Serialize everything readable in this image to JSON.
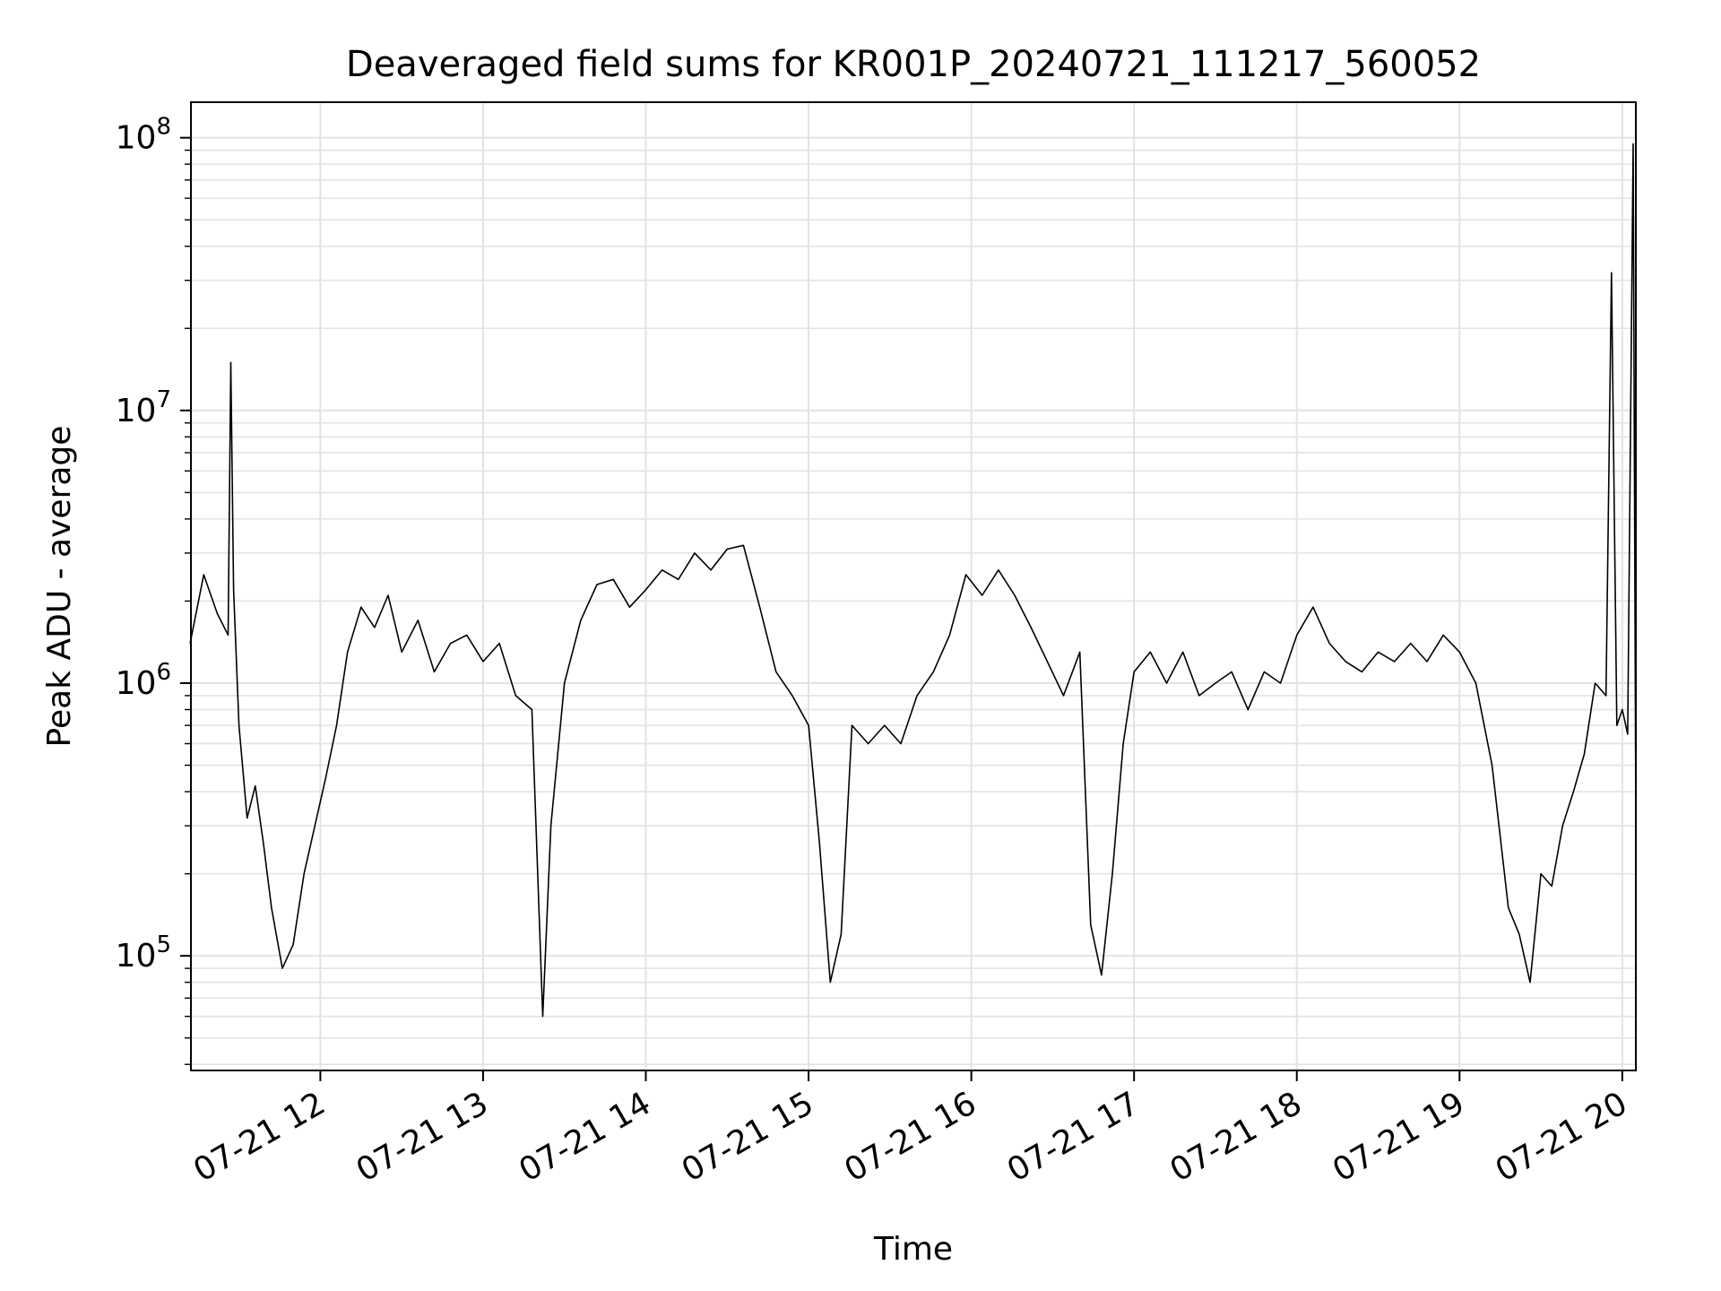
{
  "chart_data": {
    "type": "line",
    "title": "Deaveraged field sums for KR001P_20240721_111217_560052",
    "xlabel": "Time",
    "ylabel": "Peak ADU - average",
    "yscale": "log",
    "ylim": [
      38000,
      135000000
    ],
    "xlim": [
      "2024-07-21 11:12:17",
      "2024-07-21 20:05:00"
    ],
    "grid": true,
    "x_tick_labels": [
      "07-21 12",
      "07-21 13",
      "07-21 14",
      "07-21 15",
      "07-21 16",
      "07-21 17",
      "07-21 18",
      "07-21 19",
      "07-21 20"
    ],
    "y_tick_labels": [
      {
        "base": "10",
        "exp": "5"
      },
      {
        "base": "10",
        "exp": "6"
      },
      {
        "base": "10",
        "exp": "7"
      },
      {
        "base": "10",
        "exp": "8"
      }
    ],
    "series": [
      {
        "color": "#000000",
        "x": [
          "2024-07-21 11:12",
          "2024-07-21 11:17",
          "2024-07-21 11:22",
          "2024-07-21 11:26",
          "2024-07-21 11:27",
          "2024-07-21 11:28",
          "2024-07-21 11:30",
          "2024-07-21 11:33",
          "2024-07-21 11:36",
          "2024-07-21 11:39",
          "2024-07-21 11:42",
          "2024-07-21 11:46",
          "2024-07-21 11:50",
          "2024-07-21 11:54",
          "2024-07-21 11:58",
          "2024-07-21 12:02",
          "2024-07-21 12:06",
          "2024-07-21 12:10",
          "2024-07-21 12:15",
          "2024-07-21 12:20",
          "2024-07-21 12:25",
          "2024-07-21 12:30",
          "2024-07-21 12:36",
          "2024-07-21 12:42",
          "2024-07-21 12:48",
          "2024-07-21 12:54",
          "2024-07-21 13:00",
          "2024-07-21 13:06",
          "2024-07-21 13:12",
          "2024-07-21 13:18",
          "2024-07-21 13:22",
          "2024-07-21 13:25",
          "2024-07-21 13:30",
          "2024-07-21 13:36",
          "2024-07-21 13:42",
          "2024-07-21 13:48",
          "2024-07-21 13:54",
          "2024-07-21 14:00",
          "2024-07-21 14:06",
          "2024-07-21 14:12",
          "2024-07-21 14:18",
          "2024-07-21 14:24",
          "2024-07-21 14:30",
          "2024-07-21 14:36",
          "2024-07-21 14:42",
          "2024-07-21 14:48",
          "2024-07-21 14:54",
          "2024-07-21 15:00",
          "2024-07-21 15:04",
          "2024-07-21 15:08",
          "2024-07-21 15:12",
          "2024-07-21 15:16",
          "2024-07-21 15:22",
          "2024-07-21 15:28",
          "2024-07-21 15:34",
          "2024-07-21 15:40",
          "2024-07-21 15:46",
          "2024-07-21 15:52",
          "2024-07-21 15:58",
          "2024-07-21 16:04",
          "2024-07-21 16:10",
          "2024-07-21 16:16",
          "2024-07-21 16:22",
          "2024-07-21 16:28",
          "2024-07-21 16:34",
          "2024-07-21 16:40",
          "2024-07-21 16:44",
          "2024-07-21 16:48",
          "2024-07-21 16:52",
          "2024-07-21 16:56",
          "2024-07-21 17:00",
          "2024-07-21 17:06",
          "2024-07-21 17:12",
          "2024-07-21 17:18",
          "2024-07-21 17:24",
          "2024-07-21 17:30",
          "2024-07-21 17:36",
          "2024-07-21 17:42",
          "2024-07-21 17:48",
          "2024-07-21 17:54",
          "2024-07-21 18:00",
          "2024-07-21 18:06",
          "2024-07-21 18:12",
          "2024-07-21 18:18",
          "2024-07-21 18:24",
          "2024-07-21 18:30",
          "2024-07-21 18:36",
          "2024-07-21 18:42",
          "2024-07-21 18:48",
          "2024-07-21 18:54",
          "2024-07-21 19:00",
          "2024-07-21 19:06",
          "2024-07-21 19:12",
          "2024-07-21 19:18",
          "2024-07-21 19:22",
          "2024-07-21 19:26",
          "2024-07-21 19:30",
          "2024-07-21 19:34",
          "2024-07-21 19:38",
          "2024-07-21 19:42",
          "2024-07-21 19:46",
          "2024-07-21 19:50",
          "2024-07-21 19:54",
          "2024-07-21 19:56",
          "2024-07-21 19:58",
          "2024-07-21 20:00",
          "2024-07-21 20:02",
          "2024-07-21 20:04",
          "2024-07-21 20:05"
        ],
        "y": [
          1400000,
          2500000,
          1800000,
          1500000,
          15000000,
          2200000,
          700000,
          320000,
          420000,
          260000,
          150000,
          90000,
          110000,
          200000,
          300000,
          450000,
          700000,
          1300000,
          1900000,
          1600000,
          2100000,
          1300000,
          1700000,
          1100000,
          1400000,
          1500000,
          1200000,
          1400000,
          900000,
          800000,
          60000,
          300000,
          1000000,
          1700000,
          2300000,
          2400000,
          1900000,
          2200000,
          2600000,
          2400000,
          3000000,
          2600000,
          3100000,
          3200000,
          1900000,
          1100000,
          900000,
          700000,
          260000,
          80000,
          120000,
          700000,
          600000,
          700000,
          600000,
          900000,
          1100000,
          1500000,
          2500000,
          2100000,
          2600000,
          2100000,
          1600000,
          1200000,
          900000,
          1300000,
          130000,
          85000,
          200000,
          600000,
          1100000,
          1300000,
          1000000,
          1300000,
          900000,
          1000000,
          1100000,
          800000,
          1100000,
          1000000,
          1500000,
          1900000,
          1400000,
          1200000,
          1100000,
          1300000,
          1200000,
          1400000,
          1200000,
          1500000,
          1300000,
          1000000,
          500000,
          150000,
          120000,
          80000,
          200000,
          180000,
          300000,
          400000,
          550000,
          1000000,
          900000,
          32000000,
          700000,
          800000,
          650000,
          95000000,
          300000
        ]
      }
    ]
  }
}
